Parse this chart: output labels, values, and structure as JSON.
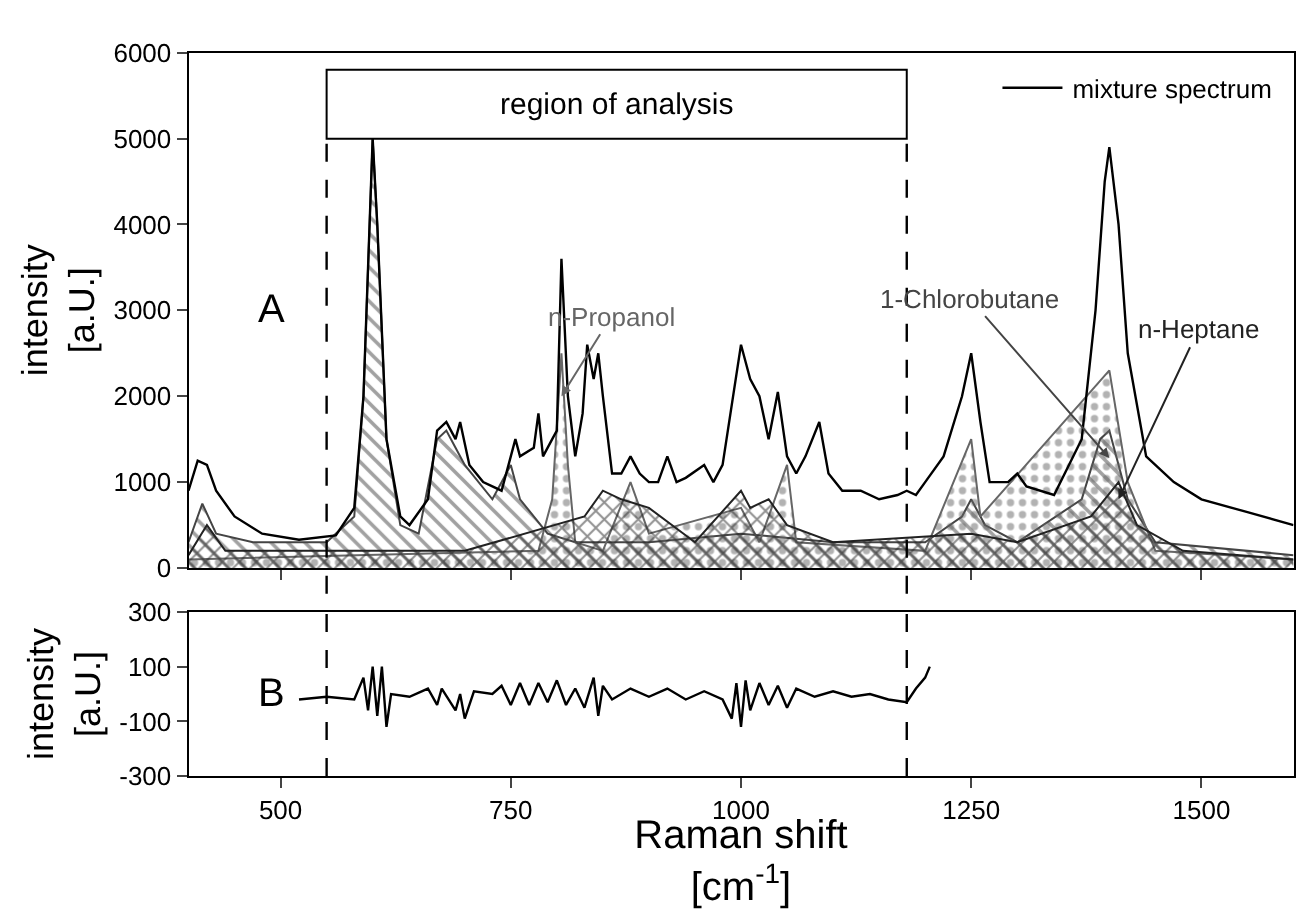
{
  "chart_data": [
    {
      "type": "area",
      "ylabel": "intensity\n[a.U.]",
      "xlim": [
        400,
        1600
      ],
      "xticks": [
        500,
        750,
        1000,
        1250,
        1500
      ],
      "ylim": [
        0,
        6000
      ],
      "yticks": [
        0,
        1000,
        2000,
        3000,
        4000,
        5000,
        6000
      ],
      "tick_labels": "y",
      "legend": "top right",
      "annotations": [
        "A"
      ],
      "ref_lines": [
        {
          "axis": "x",
          "value": 550,
          "line_style": "dashed",
          "color": "#000000"
        },
        {
          "axis": "x",
          "value": 1180,
          "line_style": "dashed",
          "color": "#000000"
        }
      ],
      "bands": [
        {
          "axis": "x",
          "from": 550,
          "to": 1180,
          "label": "region of analysis",
          "color": "#ffffff"
        }
      ],
      "series": [
        {
          "name": "1-Chlorobutane",
          "type": "area",
          "color": "#444444",
          "x": [
            400,
            415,
            430,
            470,
            550,
            580,
            590,
            600,
            605,
            615,
            630,
            650,
            670,
            680,
            690,
            700,
            730,
            750,
            760,
            790,
            820,
            900,
            950,
            1000,
            1100,
            1200,
            1240,
            1250,
            1265,
            1300,
            1370,
            1390,
            1400,
            1420,
            1450,
            1600
          ],
          "values": [
            300,
            750,
            400,
            300,
            300,
            600,
            2000,
            5000,
            4000,
            1500,
            500,
            400,
            1500,
            1600,
            1400,
            1200,
            800,
            1200,
            800,
            400,
            300,
            300,
            350,
            400,
            300,
            300,
            600,
            800,
            500,
            300,
            800,
            1500,
            1600,
            800,
            300,
            150
          ]
        },
        {
          "name": "n-Propanol",
          "type": "area",
          "color": "#666666",
          "x": [
            400,
            780,
            795,
            805,
            812,
            820,
            850,
            880,
            900,
            1000,
            1020,
            1050,
            1060,
            1200,
            1250,
            1260,
            1400,
            1420,
            1450,
            1600
          ],
          "values": [
            100,
            200,
            800,
            2500,
            1200,
            300,
            200,
            1000,
            400,
            700,
            300,
            1200,
            300,
            200,
            1500,
            600,
            2300,
            1000,
            200,
            100
          ]
        },
        {
          "name": "n-Heptane",
          "type": "area",
          "color": "#222222",
          "x": [
            400,
            420,
            440,
            700,
            830,
            850,
            870,
            900,
            950,
            1000,
            1010,
            1030,
            1050,
            1100,
            1250,
            1300,
            1380,
            1410,
            1430,
            1480,
            1600
          ],
          "values": [
            150,
            500,
            200,
            200,
            600,
            900,
            800,
            700,
            300,
            900,
            700,
            800,
            500,
            300,
            400,
            300,
            600,
            1000,
            500,
            200,
            100
          ]
        },
        {
          "name": "mixture spectrum",
          "type": "line",
          "color": "#000000",
          "x": [
            400,
            410,
            420,
            430,
            450,
            480,
            520,
            560,
            580,
            590,
            600,
            605,
            615,
            630,
            640,
            660,
            670,
            680,
            690,
            695,
            705,
            720,
            740,
            750,
            755,
            760,
            775,
            780,
            785,
            795,
            800,
            805,
            812,
            820,
            828,
            833,
            840,
            845,
            850,
            860,
            870,
            880,
            890,
            900,
            910,
            920,
            930,
            940,
            960,
            970,
            980,
            1000,
            1010,
            1020,
            1030,
            1040,
            1050,
            1060,
            1070,
            1085,
            1095,
            1110,
            1130,
            1150,
            1170,
            1180,
            1190,
            1200,
            1220,
            1240,
            1250,
            1260,
            1270,
            1290,
            1300,
            1310,
            1340,
            1370,
            1385,
            1395,
            1400,
            1410,
            1420,
            1440,
            1470,
            1500,
            1550,
            1600
          ],
          "values": [
            900,
            1250,
            1200,
            900,
            600,
            400,
            330,
            380,
            700,
            2000,
            5000,
            4000,
            1500,
            600,
            500,
            800,
            1600,
            1700,
            1500,
            1700,
            1200,
            1000,
            900,
            1300,
            1500,
            1300,
            1400,
            1800,
            1300,
            1500,
            1600,
            3600,
            2000,
            1300,
            1800,
            2600,
            2200,
            2500,
            2000,
            1100,
            1100,
            1300,
            1100,
            1000,
            1000,
            1300,
            1000,
            1050,
            1200,
            1000,
            1200,
            2600,
            2200,
            2000,
            1500,
            2050,
            1300,
            1100,
            1300,
            1700,
            1100,
            900,
            900,
            800,
            850,
            900,
            850,
            1000,
            1300,
            2000,
            2500,
            1700,
            1000,
            1000,
            1100,
            950,
            850,
            1500,
            3000,
            4500,
            4900,
            4000,
            2500,
            1300,
            1000,
            800,
            650,
            500
          ]
        }
      ]
    },
    {
      "type": "line",
      "xlabel": "Raman shift\n[cm$^{-1}$]",
      "ylabel": "intensity\n[a.U.]",
      "xlim": [
        400,
        1600
      ],
      "xticks": [
        500,
        750,
        1000,
        1250,
        1500
      ],
      "ylim": [
        -300,
        300
      ],
      "yticks": [
        -300,
        -100,
        100,
        300
      ],
      "annotations": [
        "B"
      ],
      "ref_lines": [
        {
          "axis": "x",
          "value": 550,
          "line_style": "dashed",
          "color": "#000000"
        },
        {
          "axis": "x",
          "value": 1180,
          "line_style": "dashed",
          "color": "#000000"
        }
      ],
      "series": [
        {
          "color": "#000000",
          "x": [
            520,
            550,
            580,
            590,
            595,
            600,
            605,
            610,
            615,
            620,
            640,
            660,
            670,
            675,
            690,
            695,
            700,
            710,
            730,
            740,
            750,
            760,
            770,
            780,
            790,
            800,
            810,
            820,
            830,
            840,
            845,
            850,
            860,
            880,
            900,
            920,
            940,
            960,
            980,
            990,
            995,
            1000,
            1005,
            1010,
            1020,
            1030,
            1040,
            1050,
            1060,
            1080,
            1100,
            1120,
            1140,
            1160,
            1180,
            1190,
            1200,
            1205
          ],
          "values": [
            -20,
            -10,
            -20,
            60,
            -60,
            100,
            -80,
            100,
            -120,
            0,
            -10,
            20,
            -40,
            20,
            -60,
            0,
            -90,
            10,
            0,
            30,
            -40,
            40,
            -40,
            40,
            -30,
            50,
            -40,
            20,
            -50,
            60,
            -80,
            30,
            -20,
            20,
            -10,
            20,
            -20,
            10,
            -20,
            -90,
            40,
            -120,
            50,
            -60,
            40,
            -40,
            30,
            -50,
            20,
            -10,
            10,
            -10,
            0,
            -20,
            -30,
            20,
            60,
            100
          ]
        }
      ]
    }
  ]
}
